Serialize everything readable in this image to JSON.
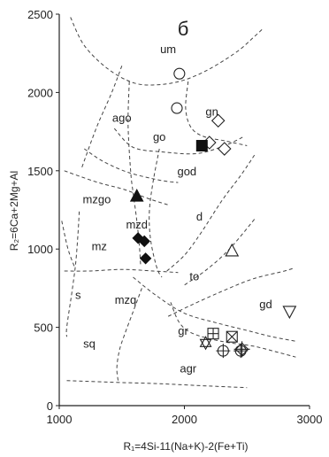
{
  "chart_data": {
    "type": "scatter",
    "panel_label": "б",
    "xlabel": "R₁=4Si-11(Na+K)-2(Fe+Ti)",
    "ylabel": "R₂=6Ca+2Mg+Al",
    "xlim": [
      1000,
      3000
    ],
    "ylim": [
      0,
      2500
    ],
    "x_ticks": [
      1000,
      2000,
      3000
    ],
    "y_ticks": [
      0,
      500,
      1000,
      1500,
      2000,
      2500
    ],
    "grid": false,
    "legend": "none",
    "region_labels": [
      {
        "text": "um",
        "x": 1870,
        "y": 2280
      },
      {
        "text": "ago",
        "x": 1500,
        "y": 1840
      },
      {
        "text": "gn",
        "x": 2220,
        "y": 1880
      },
      {
        "text": "go",
        "x": 1800,
        "y": 1720
      },
      {
        "text": "god",
        "x": 2020,
        "y": 1500
      },
      {
        "text": "mzgo",
        "x": 1300,
        "y": 1320
      },
      {
        "text": "d",
        "x": 2120,
        "y": 1210
      },
      {
        "text": "mzd",
        "x": 1620,
        "y": 1160
      },
      {
        "text": "mz",
        "x": 1320,
        "y": 1020
      },
      {
        "text": "to",
        "x": 2080,
        "y": 830
      },
      {
        "text": "s",
        "x": 1150,
        "y": 710
      },
      {
        "text": "mzq",
        "x": 1530,
        "y": 680
      },
      {
        "text": "gd",
        "x": 2650,
        "y": 650
      },
      {
        "text": "gr",
        "x": 1990,
        "y": 480
      },
      {
        "text": "sq",
        "x": 1240,
        "y": 400
      },
      {
        "text": "agr",
        "x": 2030,
        "y": 240
      }
    ],
    "boundaries": [
      [
        [
          1090,
          2480
        ],
        [
          1200,
          2300
        ],
        [
          1390,
          2150
        ],
        [
          1600,
          2060
        ],
        [
          1800,
          2050
        ],
        [
          2000,
          2080
        ],
        [
          2200,
          2150
        ],
        [
          2420,
          2260
        ],
        [
          2550,
          2350
        ],
        [
          2630,
          2410
        ]
      ],
      [
        [
          1500,
          2170
        ],
        [
          1420,
          2000
        ],
        [
          1300,
          1780
        ],
        [
          1180,
          1520
        ]
      ],
      [
        [
          1200,
          1640
        ],
        [
          1350,
          1560
        ],
        [
          1550,
          1490
        ],
        [
          1800,
          1440
        ],
        [
          1950,
          1425
        ]
      ],
      [
        [
          2030,
          2070
        ],
        [
          2010,
          1900
        ],
        [
          2050,
          1780
        ],
        [
          2150,
          1720
        ],
        [
          2330,
          1690
        ],
        [
          2500,
          1660
        ]
      ],
      [
        [
          1440,
          1770
        ],
        [
          1590,
          1650
        ],
        [
          1830,
          1620
        ],
        [
          2100,
          1610
        ],
        [
          2320,
          1660
        ],
        [
          2480,
          1720
        ]
      ],
      [
        [
          1560,
          2070
        ],
        [
          1550,
          1800
        ],
        [
          1570,
          1500
        ],
        [
          1590,
          1360
        ],
        [
          1620,
          1180
        ],
        [
          1640,
          1020
        ],
        [
          1650,
          900
        ]
      ],
      [
        [
          1040,
          1500
        ],
        [
          1180,
          1460
        ],
        [
          1330,
          1420
        ],
        [
          1520,
          1380
        ],
        [
          1720,
          1320
        ],
        [
          1880,
          1280
        ]
      ],
      [
        [
          1800,
          1640
        ],
        [
          1750,
          1430
        ],
        [
          1720,
          1240
        ],
        [
          1730,
          1060
        ],
        [
          1780,
          880
        ],
        [
          1820,
          820
        ]
      ],
      [
        [
          2560,
          1600
        ],
        [
          2450,
          1470
        ],
        [
          2300,
          1310
        ],
        [
          2130,
          1100
        ],
        [
          2000,
          960
        ],
        [
          1860,
          860
        ]
      ],
      [
        [
          1020,
          1180
        ],
        [
          1070,
          1000
        ],
        [
          1120,
          890
        ]
      ],
      [
        [
          1040,
          860
        ],
        [
          1250,
          860
        ],
        [
          1500,
          870
        ],
        [
          1750,
          860
        ],
        [
          1950,
          850
        ]
      ],
      [
        [
          1160,
          1240
        ],
        [
          1150,
          1100
        ],
        [
          1130,
          900
        ],
        [
          1100,
          720
        ],
        [
          1060,
          500
        ],
        [
          1060,
          440
        ]
      ],
      [
        [
          2560,
          1190
        ],
        [
          2360,
          1000
        ],
        [
          2180,
          870
        ],
        [
          2000,
          770
        ]
      ],
      [
        [
          1870,
          570
        ],
        [
          2050,
          640
        ],
        [
          2300,
          730
        ],
        [
          2550,
          810
        ],
        [
          2800,
          860
        ],
        [
          2880,
          880
        ]
      ],
      [
        [
          1590,
          820
        ],
        [
          1780,
          700
        ],
        [
          2000,
          590
        ],
        [
          2250,
          530
        ],
        [
          2500,
          480
        ],
        [
          2700,
          440
        ],
        [
          2900,
          410
        ]
      ],
      [
        [
          1660,
          750
        ],
        [
          1590,
          600
        ],
        [
          1520,
          450
        ],
        [
          1480,
          350
        ],
        [
          1460,
          240
        ],
        [
          1470,
          160
        ]
      ],
      [
        [
          1890,
          660
        ],
        [
          1960,
          530
        ],
        [
          2070,
          460
        ],
        [
          2300,
          410
        ],
        [
          2550,
          380
        ],
        [
          2750,
          340
        ],
        [
          2890,
          310
        ]
      ],
      [
        [
          1060,
          160
        ],
        [
          1400,
          150
        ],
        [
          1800,
          140
        ],
        [
          2200,
          125
        ],
        [
          2500,
          115
        ]
      ]
    ],
    "series": [
      {
        "marker": "open-circle",
        "points": [
          [
            1960,
            2120
          ],
          [
            1940,
            1900
          ]
        ]
      },
      {
        "marker": "open-diamond",
        "points": [
          [
            2270,
            1820
          ],
          [
            2200,
            1680
          ],
          [
            2320,
            1640
          ]
        ]
      },
      {
        "marker": "filled-square",
        "points": [
          [
            2140,
            1660
          ]
        ]
      },
      {
        "marker": "filled-triangle",
        "points": [
          [
            1620,
            1340
          ]
        ]
      },
      {
        "marker": "filled-diamond",
        "points": [
          [
            1630,
            1070
          ],
          [
            1680,
            1050
          ],
          [
            1690,
            940
          ]
        ]
      },
      {
        "marker": "open-triangle",
        "points": [
          [
            2380,
            990
          ]
        ]
      },
      {
        "marker": "open-triangle-down",
        "points": [
          [
            2840,
            600
          ]
        ]
      },
      {
        "marker": "squared-plus",
        "points": [
          [
            2230,
            460
          ]
        ]
      },
      {
        "marker": "squared-x",
        "points": [
          [
            2380,
            440
          ]
        ]
      },
      {
        "marker": "star-of-david",
        "points": [
          [
            2170,
            400
          ]
        ]
      },
      {
        "marker": "circled-plus",
        "points": [
          [
            2310,
            350
          ],
          [
            2450,
            350
          ]
        ]
      },
      {
        "marker": "diamond-plus",
        "points": [
          [
            2460,
            360
          ]
        ]
      }
    ]
  }
}
